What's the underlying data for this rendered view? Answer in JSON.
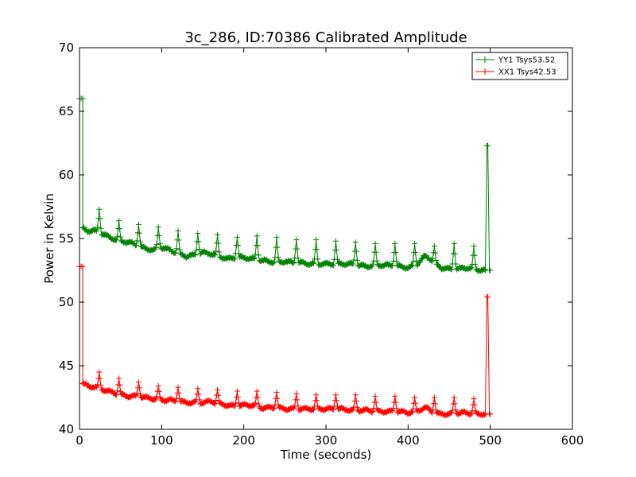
{
  "chart_data": {
    "type": "line",
    "title": "3c_286, ID:70386 Calibrated Amplitude",
    "xlabel": "Time (seconds)",
    "ylabel": "Power in Kelvin",
    "xlim": [
      0,
      600
    ],
    "ylim": [
      40,
      70
    ],
    "xticks": [
      "0",
      "100",
      "200",
      "300",
      "400",
      "500",
      "600"
    ],
    "yticks": [
      "40",
      "45",
      "50",
      "55",
      "60",
      "65",
      "70"
    ],
    "grid": false,
    "legend_position": "top-right",
    "marker": "plus",
    "series": [
      {
        "name": "YY1 Tsys53.52",
        "color": "#008000",
        "start": {
          "x": 0,
          "y": 66.0
        },
        "drop_x": 4,
        "spike_x": [
          24,
          48,
          72,
          96,
          120,
          144,
          168,
          192,
          216,
          240,
          264,
          288,
          312,
          336,
          360,
          384,
          408,
          432,
          456,
          480
        ],
        "spike_y": [
          57.3,
          56.4,
          56.1,
          55.9,
          55.6,
          55.4,
          55.3,
          55.1,
          55.2,
          55.1,
          54.9,
          54.9,
          54.8,
          54.7,
          54.6,
          54.6,
          54.6,
          54.4,
          54.6,
          54.4
        ],
        "baseline_x": [
          4,
          10,
          20,
          30,
          40,
          50,
          60,
          70,
          80,
          90,
          100,
          110,
          120,
          130,
          140,
          150,
          160,
          170,
          180,
          190,
          200,
          210,
          220,
          230,
          240,
          250,
          260,
          270,
          280,
          290,
          300,
          310,
          320,
          330,
          340,
          350,
          360,
          370,
          380,
          390,
          400,
          410,
          420,
          425,
          430,
          440,
          450,
          460,
          470,
          480,
          490,
          494
        ],
        "baseline_y": [
          55.8,
          55.6,
          55.6,
          55.3,
          55.0,
          54.8,
          54.7,
          54.5,
          54.2,
          54.1,
          54.3,
          54.1,
          53.8,
          53.6,
          53.7,
          53.9,
          53.8,
          53.6,
          53.4,
          53.5,
          53.5,
          53.4,
          53.3,
          53.2,
          53.1,
          53.2,
          53.1,
          53.1,
          53.0,
          53.0,
          53.0,
          53.0,
          53.0,
          53.0,
          52.9,
          52.8,
          52.9,
          52.9,
          52.9,
          52.8,
          52.7,
          52.9,
          53.6,
          53.5,
          53.2,
          52.7,
          52.6,
          52.6,
          52.7,
          52.6,
          52.5,
          52.5
        ],
        "end_spike": {
          "x": [
            494,
            496,
            497,
            499,
            500
          ],
          "y": [
            52.5,
            62.3,
            62.3,
            52.5,
            52.5
          ]
        }
      },
      {
        "name": "XX1 Tsys42.53",
        "color": "#ff0000",
        "start": {
          "x": 0,
          "y": 52.8
        },
        "drop_x": 4,
        "spike_x": [
          24,
          48,
          72,
          96,
          120,
          144,
          168,
          192,
          216,
          240,
          264,
          288,
          312,
          336,
          360,
          384,
          408,
          432,
          456,
          480
        ],
        "spike_y": [
          44.5,
          44.0,
          43.7,
          43.4,
          43.3,
          43.2,
          43.1,
          43.0,
          43.0,
          42.9,
          42.8,
          42.7,
          42.7,
          42.7,
          42.6,
          42.6,
          42.5,
          42.5,
          42.5,
          42.4
        ],
        "baseline_x": [
          4,
          10,
          20,
          30,
          40,
          50,
          60,
          70,
          80,
          90,
          100,
          110,
          120,
          130,
          140,
          150,
          160,
          170,
          180,
          190,
          200,
          210,
          220,
          230,
          240,
          250,
          260,
          270,
          280,
          290,
          300,
          310,
          320,
          330,
          340,
          350,
          360,
          370,
          380,
          390,
          400,
          410,
          420,
          425,
          430,
          440,
          450,
          460,
          470,
          480,
          490,
          494
        ],
        "baseline_y": [
          43.6,
          43.4,
          43.3,
          43.1,
          42.9,
          42.7,
          42.6,
          42.6,
          42.5,
          42.4,
          42.3,
          42.3,
          42.2,
          42.1,
          42.1,
          42.1,
          42.2,
          42.0,
          41.9,
          41.8,
          41.9,
          41.9,
          41.7,
          41.7,
          41.7,
          41.6,
          41.6,
          41.6,
          41.6,
          41.6,
          41.6,
          41.6,
          41.6,
          41.5,
          41.5,
          41.5,
          41.4,
          41.4,
          41.4,
          41.4,
          41.3,
          41.4,
          41.7,
          41.6,
          41.3,
          41.2,
          41.2,
          41.3,
          41.3,
          41.2,
          41.2,
          41.2
        ],
        "end_spike": {
          "x": [
            494,
            496,
            497,
            499,
            500
          ],
          "y": [
            41.2,
            50.4,
            50.4,
            41.2,
            41.2
          ]
        }
      }
    ]
  }
}
